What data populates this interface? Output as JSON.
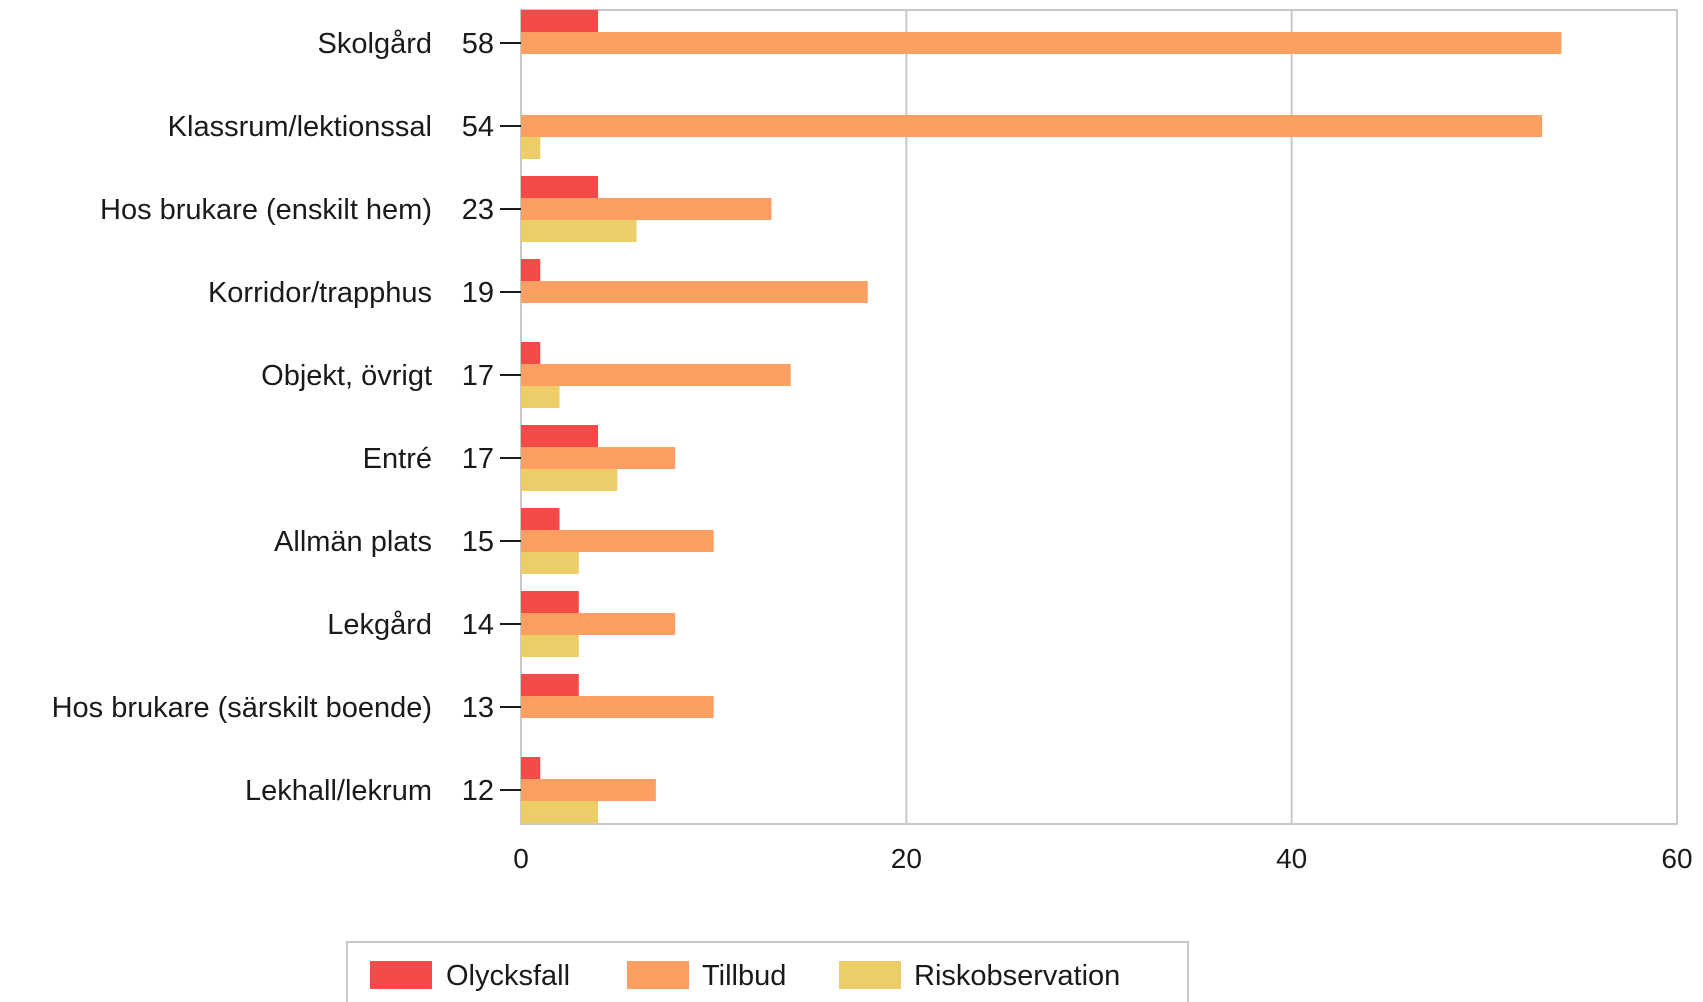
{
  "chart_data": {
    "type": "bar",
    "orientation": "horizontal",
    "categories": [
      "Skolgård",
      "Klassrum/lektionssal",
      "Hos brukare (enskilt hem)",
      "Korridor/trapphus",
      "Objekt, övrigt",
      "Entré",
      "Allmän plats",
      "Lekgård",
      "Hos brukare (särskilt boende)",
      "Lekhall/lekrum"
    ],
    "totals": [
      "58",
      "54",
      "23",
      "19",
      "17",
      "17",
      "15",
      "14",
      "13",
      "12"
    ],
    "series": [
      {
        "name": "Olycksfall",
        "color": "#f44a4a",
        "values": [
          4,
          0,
          4,
          1,
          1,
          4,
          2,
          3,
          3,
          1
        ]
      },
      {
        "name": "Tillbud",
        "color": "#fd9f63",
        "values": [
          54,
          53,
          13,
          18,
          14,
          8,
          10,
          8,
          10,
          7
        ]
      },
      {
        "name": "Riskobservation",
        "color": "#edcd67",
        "values": [
          0,
          1,
          6,
          0,
          2,
          5,
          3,
          3,
          0,
          4
        ]
      }
    ],
    "xlim": [
      0,
      60
    ],
    "xticks": [
      "0",
      "20",
      "40",
      "60"
    ],
    "grid": true,
    "legend_position": "bottom"
  }
}
